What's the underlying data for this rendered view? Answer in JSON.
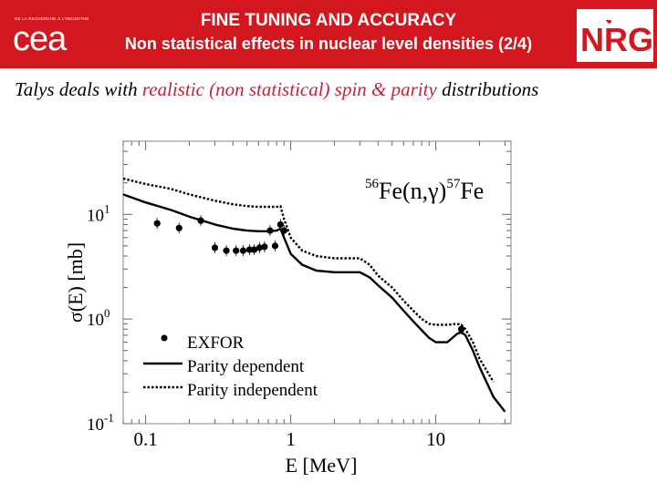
{
  "header": {
    "title_line1": "FINE TUNING AND ACCURACY",
    "title_line2": "Non statistical effects in nuclear level densities (2/4)",
    "logo_left": {
      "word": "cea",
      "tagline": "DE LA RECHERCHE À L'INDUSTRIE"
    },
    "logo_right": {
      "word": "NRG",
      "accent_color": "#2e9b3c",
      "brand_color": "#d2171e"
    }
  },
  "subtitle": {
    "part1": "Talys deals with ",
    "highlight": "realistic (non statistical) spin & parity",
    "part2": " distributions",
    "highlight_color": "#c0243a"
  },
  "chart_data": {
    "type": "line",
    "reaction_label": {
      "pre": "56",
      "mid1": "Fe(n,",
      "gamma": "γ",
      "mid2": ")",
      "post": "57",
      "tail": "Fe"
    },
    "xlabel": "E [MeV]",
    "ylabel": "σ(E)  [mb]",
    "x_scale": "log",
    "y_scale": "log",
    "xlim": [
      0.07,
      33
    ],
    "ylim": [
      0.1,
      50
    ],
    "x_ticks": [
      {
        "value": 0.1,
        "label": "0.1"
      },
      {
        "value": 1,
        "label": "1"
      },
      {
        "value": 10,
        "label": "10"
      }
    ],
    "y_ticks": [
      {
        "value": 0.1,
        "base": "10",
        "exp": "-1"
      },
      {
        "value": 1,
        "base": "10",
        "exp": "0"
      },
      {
        "value": 10,
        "base": "10",
        "exp": "1"
      }
    ],
    "legend": {
      "placement": "bottom-left",
      "entries": [
        "EXFOR",
        "Parity dependent",
        "Parity independent"
      ]
    },
    "series": [
      {
        "name": "Parity dependent",
        "style": "solid",
        "x": [
          0.07,
          0.1,
          0.15,
          0.2,
          0.3,
          0.4,
          0.5,
          0.6,
          0.7,
          0.8,
          0.85,
          0.9,
          1.0,
          1.2,
          1.5,
          2.0,
          2.5,
          3.0,
          3.5,
          4.0,
          5.0,
          6.0,
          7.0,
          8.0,
          9.0,
          10.0,
          12.0,
          14.0,
          15.0,
          16.0,
          18.0,
          20.0,
          25.0,
          30.0
        ],
        "y": [
          15.5,
          13.0,
          11.0,
          9.5,
          8.0,
          7.3,
          7.0,
          6.9,
          6.9,
          7.0,
          7.3,
          6.0,
          4.2,
          3.3,
          2.9,
          2.8,
          2.8,
          2.8,
          2.5,
          2.1,
          1.6,
          1.2,
          0.95,
          0.78,
          0.66,
          0.6,
          0.6,
          0.72,
          0.75,
          0.7,
          0.5,
          0.35,
          0.18,
          0.13
        ]
      },
      {
        "name": "Parity independent",
        "style": "dotted",
        "x": [
          0.07,
          0.1,
          0.15,
          0.2,
          0.3,
          0.4,
          0.5,
          0.6,
          0.7,
          0.8,
          0.85,
          0.9,
          1.0,
          1.2,
          1.5,
          2.0,
          2.5,
          3.0,
          3.5,
          4.0,
          5.0,
          6.0,
          7.0,
          8.0,
          9.0,
          10.0,
          12.0,
          14.0,
          15.0,
          16.0,
          18.0,
          20.0,
          25.0
        ],
        "y": [
          22.0,
          19.5,
          17.5,
          15.5,
          13.5,
          12.5,
          12.0,
          11.8,
          11.8,
          11.8,
          12.0,
          9.0,
          6.0,
          4.5,
          4.0,
          3.8,
          3.8,
          3.8,
          3.3,
          2.6,
          2.0,
          1.5,
          1.2,
          1.0,
          0.9,
          0.88,
          0.88,
          0.9,
          0.88,
          0.8,
          0.6,
          0.42,
          0.25
        ]
      },
      {
        "name": "EXFOR",
        "style": "points",
        "x": [
          0.12,
          0.17,
          0.24,
          0.3,
          0.36,
          0.42,
          0.47,
          0.52,
          0.56,
          0.61,
          0.66,
          0.72,
          0.78,
          0.85,
          0.9,
          15.0
        ],
        "y": [
          8.2,
          7.4,
          8.7,
          4.8,
          4.5,
          4.5,
          4.5,
          4.6,
          4.6,
          4.8,
          4.9,
          7.0,
          5.0,
          8.0,
          7.0,
          0.8
        ]
      }
    ]
  }
}
